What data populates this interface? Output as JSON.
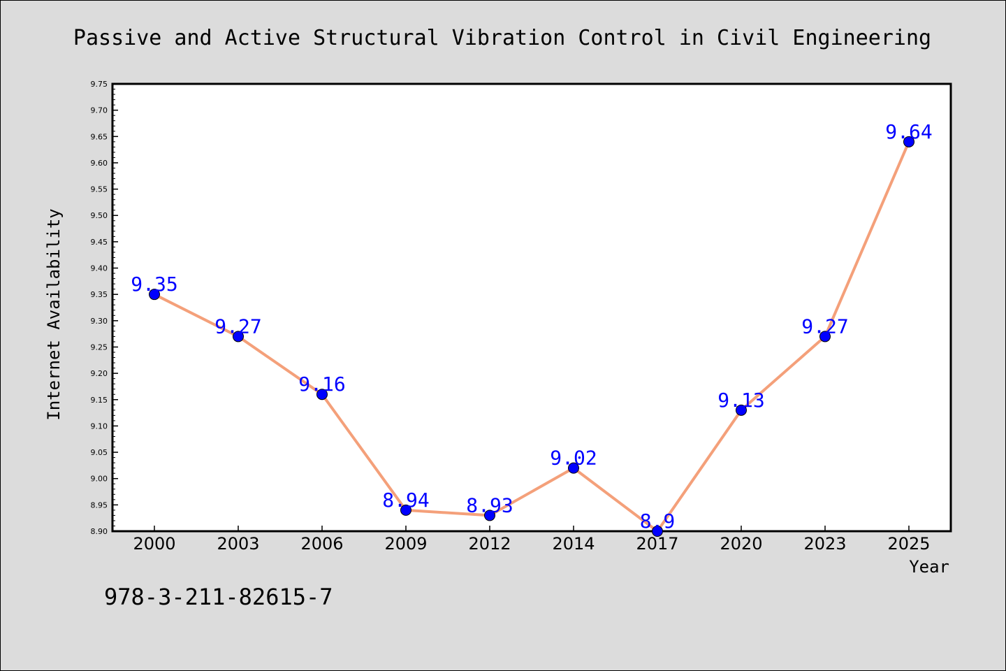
{
  "isbn": "978-3-211-82615-7",
  "colors": {
    "background": "#dcdcdc",
    "plot_background": "#ffffff",
    "line": "#f4a07a",
    "marker": "#0000ff",
    "data_label": "#0000ff"
  },
  "chart_data": {
    "type": "line",
    "title": "Passive and Active Structural Vibration Control in Civil Engineering",
    "xlabel": "Year",
    "ylabel": "Internet Availability",
    "categories": [
      "2000",
      "2003",
      "2006",
      "2009",
      "2012",
      "2014",
      "2017",
      "2020",
      "2023",
      "2025"
    ],
    "series": [
      {
        "values": [
          9.35,
          9.27,
          9.16,
          8.94,
          8.93,
          9.02,
          8.9,
          9.13,
          9.27,
          9.64
        ],
        "labels": [
          "9.35",
          "9.27",
          "9.16",
          "8.94",
          "8.93",
          "9.02",
          "8.9",
          "9.13",
          "9.27",
          "9.64"
        ]
      }
    ],
    "ylim": [
      8.9,
      9.75
    ],
    "yticks": [
      "8.90",
      "8.95",
      "9.00",
      "9.05",
      "9.10",
      "9.15",
      "9.20",
      "9.25",
      "9.30",
      "9.35",
      "9.40",
      "9.45",
      "9.50",
      "9.55",
      "9.60",
      "9.65",
      "9.70",
      "9.75"
    ],
    "grid": false,
    "legend": "none",
    "markers": "circle"
  }
}
